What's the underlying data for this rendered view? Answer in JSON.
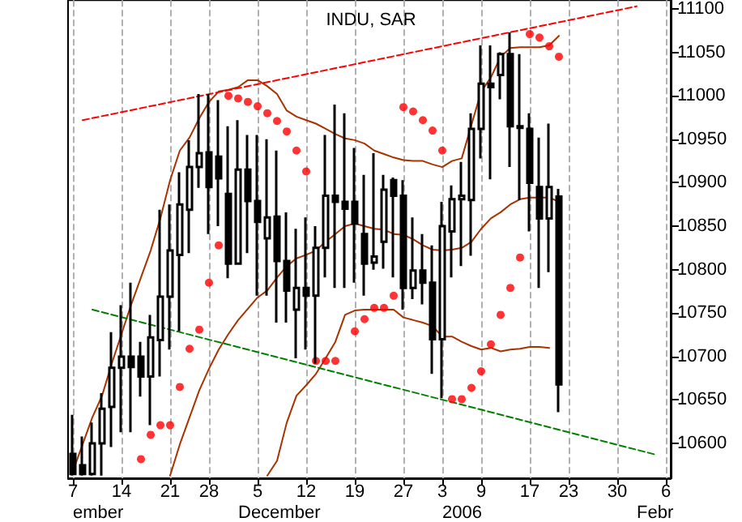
{
  "chart_data": {
    "type": "candlestick",
    "title": "INDU, SAR",
    "categories": [
      "7",
      null,
      null,
      null,
      null,
      "14",
      null,
      null,
      null,
      null,
      "21",
      null,
      null,
      null,
      "28",
      null,
      null,
      null,
      null,
      "5",
      null,
      null,
      null,
      null,
      "12",
      null,
      null,
      null,
      null,
      "19",
      null,
      null,
      null,
      null,
      "27",
      null,
      null,
      null,
      "3",
      null,
      null,
      null,
      "9",
      null,
      null,
      null,
      null,
      "17",
      null,
      null,
      null,
      "23",
      null,
      null,
      null,
      null,
      "30",
      null,
      null,
      null,
      null,
      "6"
    ],
    "ohlc": [
      [
        10588,
        10633,
        10563,
        10565
      ],
      [
        10575,
        10608,
        10563,
        10565
      ],
      [
        10565,
        10624,
        10563,
        10600
      ],
      [
        10600,
        10658,
        10563,
        10640
      ],
      [
        10642,
        10728,
        10596,
        10687
      ],
      [
        10687,
        10759,
        10613,
        10700
      ],
      [
        10700,
        10785,
        10613,
        10688
      ],
      [
        10700,
        10717,
        10654,
        10677
      ],
      [
        10677,
        10748,
        10621,
        10722
      ],
      [
        10719,
        10869,
        10677,
        10769
      ],
      [
        10769,
        10875,
        10708,
        10822
      ],
      [
        10817,
        10912,
        10729,
        10875
      ],
      [
        10869,
        10949,
        10819,
        10918
      ],
      [
        10918,
        11002,
        10894,
        10934
      ],
      [
        10935,
        11002,
        10841,
        10895
      ],
      [
        10930,
        10995,
        10850,
        10905
      ],
      [
        10887,
        10965,
        10790,
        10807
      ],
      [
        10807,
        10972,
        10807,
        10915
      ],
      [
        10915,
        10955,
        10819,
        10879
      ],
      [
        10879,
        10955,
        10770,
        10855
      ],
      [
        10836,
        10950,
        10770,
        10860
      ],
      [
        10861,
        10937,
        10739,
        10810
      ],
      [
        10810,
        10866,
        10739,
        10776
      ],
      [
        10754,
        10847,
        10698,
        10779
      ],
      [
        10779,
        10860,
        10708,
        10770
      ],
      [
        10770,
        10850,
        10692,
        10825
      ],
      [
        10825,
        10955,
        10791,
        10885
      ],
      [
        10885,
        10990,
        10779,
        10878
      ],
      [
        10878,
        10980,
        10779,
        10870
      ],
      [
        10878,
        10940,
        10785,
        10853
      ],
      [
        10841,
        10909,
        10770,
        10807
      ],
      [
        10808,
        10934,
        10800,
        10815
      ],
      [
        10832,
        10909,
        10801,
        10892
      ],
      [
        10903,
        10906,
        10791,
        10885
      ],
      [
        10885,
        10903,
        10754,
        10779
      ],
      [
        10779,
        10860,
        10766,
        10799
      ],
      [
        10799,
        10841,
        10760,
        10785
      ],
      [
        10785,
        10828,
        10680,
        10720
      ],
      [
        10720,
        10878,
        10652,
        10850
      ],
      [
        10844,
        10897,
        10791,
        10881
      ],
      [
        10881,
        10924,
        10804,
        10885
      ],
      [
        10880,
        10980,
        10816,
        10962
      ],
      [
        10962,
        11058,
        10928,
        11014
      ],
      [
        11014,
        11058,
        10904,
        11010
      ],
      [
        11024,
        11050,
        10996,
        11048
      ],
      [
        11048,
        11073,
        10918,
        10965
      ],
      [
        10965,
        11048,
        10880,
        10963
      ],
      [
        10962,
        10980,
        10844,
        10900
      ],
      [
        10895,
        10952,
        10779,
        10859
      ],
      [
        10859,
        10968,
        10797,
        10895
      ],
      [
        10884,
        10893,
        10636,
        10668
      ],
      null,
      null,
      null,
      null,
      null,
      null,
      null,
      null,
      null,
      null,
      null
    ],
    "series": [
      {
        "type": "line",
        "color": "#a83200",
        "marker": "none",
        "values": [
          10568,
          10599,
          10630,
          10655,
          10692,
          10726,
          10760,
          10791,
          10822,
          10859,
          10903,
          10937,
          10952,
          10974,
          10993,
          11005,
          11007,
          11010,
          11018,
          11018,
          11011,
          11002,
          10983,
          10976,
          10972,
          10968,
          10962,
          10956,
          10951,
          10949,
          10945,
          10937,
          10933,
          10929,
          10926,
          10925,
          10925,
          10921,
          10918,
          10925,
          10928,
          null,
          11005,
          11021,
          11045,
          11055,
          11056,
          11056,
          11056,
          11058,
          11069,
          null,
          null,
          null,
          null,
          null,
          null,
          null,
          null,
          null,
          null,
          null
        ]
      },
      {
        "type": "line",
        "color": "#a83200",
        "marker": "none",
        "values": [
          null,
          null,
          null,
          null,
          null,
          null,
          null,
          null,
          null,
          null,
          10563,
          10599,
          10630,
          10661,
          10686,
          10708,
          10726,
          10742,
          10755,
          10768,
          10776,
          10791,
          10804,
          10813,
          10817,
          10822,
          10832,
          10841,
          10850,
          10853,
          10850,
          10847,
          10846,
          10841,
          10840,
          10835,
          10828,
          10823,
          10822,
          10823,
          10825,
          10832,
          10847,
          10859,
          10866,
          10875,
          10881,
          10883,
          10883,
          10883,
          10878,
          null,
          null,
          null,
          null,
          null,
          null,
          null,
          null,
          null,
          null,
          null
        ]
      },
      {
        "type": "line",
        "color": "#a83200",
        "marker": "none",
        "values": [
          null,
          null,
          null,
          null,
          null,
          null,
          null,
          null,
          null,
          null,
          null,
          null,
          null,
          null,
          null,
          null,
          null,
          null,
          null,
          null,
          10563,
          10580,
          10624,
          10655,
          10667,
          10680,
          10698,
          10717,
          10748,
          10753,
          10754,
          10754,
          10754,
          10754,
          10745,
          10742,
          10739,
          10735,
          10723,
          10723,
          10717,
          10712,
          10708,
          10710,
          10706,
          10708,
          10709,
          10711,
          10711,
          10710,
          null,
          null,
          null,
          null,
          null,
          null,
          null,
          null,
          null,
          null,
          null,
          null
        ]
      },
      {
        "type": "scatter",
        "color": "#ff0000",
        "marker": "circle",
        "values": [
          null,
          null,
          null,
          null,
          null,
          null,
          null,
          10582,
          10610,
          10621,
          10621,
          10665,
          10709,
          10731,
          10785,
          10828,
          11000,
          10997,
          10993,
          10988,
          10980,
          10971,
          10959,
          10937,
          10913,
          10695,
          10695,
          10695,
          null,
          10729,
          10743,
          10756,
          10756,
          10770,
          10987,
          10982,
          10972,
          10960,
          10937,
          10651,
          10651,
          10664,
          10683,
          10714,
          10748,
          10779,
          10814,
          11071,
          11067,
          11057,
          11045,
          null,
          null,
          null,
          null,
          null,
          null,
          null,
          null,
          null,
          null,
          null
        ]
      },
      {
        "type": "line",
        "color": "#ff0000",
        "line_style": "dashed",
        "marker": "none",
        "values": [
          null,
          10972,
          null,
          null,
          null,
          null,
          null,
          null,
          null,
          null,
          null,
          null,
          null,
          null,
          null,
          null,
          null,
          null,
          null,
          null,
          null,
          null,
          null,
          null,
          null,
          null,
          null,
          null,
          null,
          null,
          null,
          null,
          null,
          null,
          null,
          null,
          null,
          null,
          null,
          null,
          null,
          null,
          null,
          null,
          null,
          null,
          null,
          null,
          null,
          null,
          null,
          null,
          null,
          null,
          null,
          null,
          null,
          null,
          11103,
          null,
          null,
          null
        ]
      },
      {
        "type": "line",
        "color": "#008000",
        "line_style": "dashed",
        "marker": "none",
        "values": [
          null,
          null,
          10754,
          null,
          null,
          null,
          null,
          null,
          null,
          null,
          null,
          null,
          null,
          null,
          null,
          null,
          null,
          null,
          null,
          null,
          null,
          null,
          null,
          null,
          null,
          null,
          null,
          null,
          null,
          null,
          null,
          null,
          null,
          null,
          null,
          null,
          null,
          null,
          null,
          null,
          null,
          null,
          null,
          null,
          null,
          null,
          null,
          null,
          null,
          null,
          null,
          null,
          null,
          null,
          null,
          null,
          null,
          null,
          null,
          null,
          10587,
          null
        ]
      }
    ],
    "ylim": [
      10560,
      11110
    ],
    "yticks": [
      10600,
      10650,
      10700,
      10750,
      10800,
      10850,
      10900,
      10950,
      11000,
      11050,
      11100
    ],
    "grid": "x",
    "annotations": [
      "ember",
      "December",
      "2006",
      "Febr"
    ]
  }
}
